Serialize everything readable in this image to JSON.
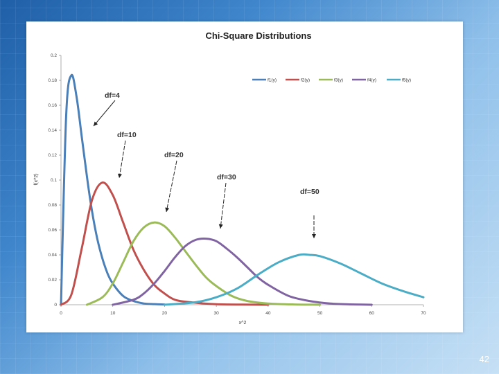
{
  "slide": {
    "number": "42"
  },
  "chart_data": {
    "type": "line",
    "title": "Chi-Square Distributions",
    "xlabel": "x^2",
    "ylabel": "f(x^2)",
    "xlim": [
      0,
      70
    ],
    "ylim": [
      0,
      0.2
    ],
    "x_ticks": [
      "0",
      "10",
      "20",
      "30",
      "40",
      "50",
      "60",
      "70"
    ],
    "y_ticks": [
      "0",
      "0.02",
      "0.04",
      "0.06",
      "0.08",
      "0.1",
      "0.12",
      "0.14",
      "0.16",
      "0.18",
      "0.2"
    ],
    "grid": false,
    "legend_position": "top-right",
    "series": [
      {
        "name": "f1(y)",
        "df": 4,
        "color": "#4a7fb8",
        "x": [
          0,
          1,
          2,
          3,
          4,
          5,
          6,
          7,
          8,
          9,
          10,
          12,
          14,
          16,
          18,
          20
        ],
        "y": [
          0,
          0.152,
          0.184,
          0.167,
          0.135,
          0.103,
          0.075,
          0.053,
          0.037,
          0.025,
          0.017,
          0.007,
          0.003,
          0.001,
          0.0005,
          0.0002
        ]
      },
      {
        "name": "f2(y)",
        "df": 10,
        "color": "#c0504d",
        "x": [
          0,
          2,
          4,
          6,
          8,
          10,
          12,
          14,
          16,
          18,
          20,
          22,
          25,
          30,
          35,
          40
        ],
        "y": [
          0,
          0.008,
          0.045,
          0.084,
          0.098,
          0.088,
          0.066,
          0.044,
          0.028,
          0.016,
          0.009,
          0.004,
          0.002,
          0.0004,
          0.0001,
          0
        ]
      },
      {
        "name": "f3(y)",
        "df": 20,
        "color": "#9bbb59",
        "x": [
          5,
          8,
          10,
          12,
          14,
          16,
          18,
          20,
          22,
          24,
          26,
          28,
          30,
          33,
          36,
          40,
          45,
          50
        ],
        "y": [
          0,
          0.006,
          0.017,
          0.034,
          0.051,
          0.062,
          0.066,
          0.063,
          0.054,
          0.043,
          0.032,
          0.022,
          0.015,
          0.007,
          0.003,
          0.001,
          0.0002,
          0
        ]
      },
      {
        "name": "f4(y)",
        "df": 30,
        "color": "#8064a2",
        "x": [
          10,
          14,
          16,
          18,
          20,
          22,
          24,
          26,
          28,
          30,
          32,
          34,
          36,
          38,
          40,
          44,
          48,
          52,
          56,
          60
        ],
        "y": [
          0,
          0.004,
          0.009,
          0.017,
          0.027,
          0.038,
          0.047,
          0.052,
          0.053,
          0.051,
          0.045,
          0.038,
          0.03,
          0.022,
          0.016,
          0.007,
          0.003,
          0.001,
          0.0003,
          0
        ]
      },
      {
        "name": "f5(y)",
        "df": 50,
        "color": "#4bacc6",
        "x": [
          20,
          26,
          30,
          34,
          38,
          42,
          46,
          48,
          50,
          54,
          58,
          62,
          66,
          70
        ],
        "y": [
          0,
          0.002,
          0.006,
          0.013,
          0.024,
          0.034,
          0.04,
          0.04,
          0.039,
          0.033,
          0.025,
          0.017,
          0.011,
          0.006
        ]
      }
    ],
    "annotations": [
      {
        "text": "df=4",
        "points_to_series": "f1(y)"
      },
      {
        "text": "df=10",
        "points_to_series": "f2(y)"
      },
      {
        "text": "df=20",
        "points_to_series": "f3(y)"
      },
      {
        "text": "df=30",
        "points_to_series": "f4(y)"
      },
      {
        "text": "df=50",
        "points_to_series": "f5(y)"
      }
    ]
  }
}
